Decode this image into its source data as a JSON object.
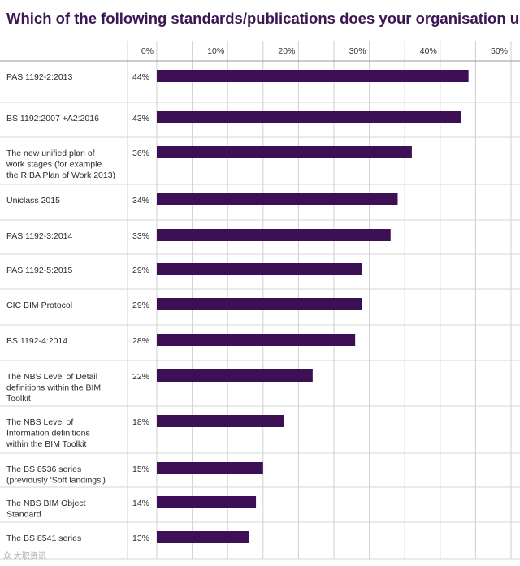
{
  "chart_data": {
    "type": "bar",
    "orientation": "horizontal",
    "title": "Which of the following standards/publications does your organisation use?",
    "xlabel": "",
    "ylabel": "",
    "xlim": [
      0,
      50
    ],
    "ticks": [
      "0%",
      "10%",
      "20%",
      "30%",
      "40%",
      "50%"
    ],
    "grid": true,
    "bar_color": "#3d0f55",
    "categories": [
      [
        "PAS 1192-2:2013"
      ],
      [
        "BS 1192:2007 +A2:2016"
      ],
      [
        "The new unified plan of",
        "work stages (for example",
        "the RIBA Plan of Work 2013)"
      ],
      [
        "Uniclass 2015"
      ],
      [
        "PAS 1192-3:2014"
      ],
      [
        "PAS 1192-5:2015"
      ],
      [
        "CIC BIM Protocol"
      ],
      [
        "BS 1192-4:2014"
      ],
      [
        "The NBS Level of Detail",
        "definitions within the BIM",
        "Toolkit"
      ],
      [
        "The NBS Level of",
        "Information definitions",
        "within the BIM Toolkit"
      ],
      [
        "The BS 8536 series",
        "(previously 'Soft landings')"
      ],
      [
        "The NBS BIM Object",
        "Standard"
      ],
      [
        "The BS 8541 series"
      ]
    ],
    "values": [
      44,
      43,
      36,
      34,
      33,
      29,
      29,
      28,
      22,
      18,
      15,
      14,
      13
    ],
    "value_labels": [
      "44%",
      "43%",
      "36%",
      "34%",
      "33%",
      "29%",
      "29%",
      "28%",
      "22%",
      "18%",
      "15%",
      "14%",
      "13%"
    ]
  },
  "watermark": "众 大职资讯"
}
